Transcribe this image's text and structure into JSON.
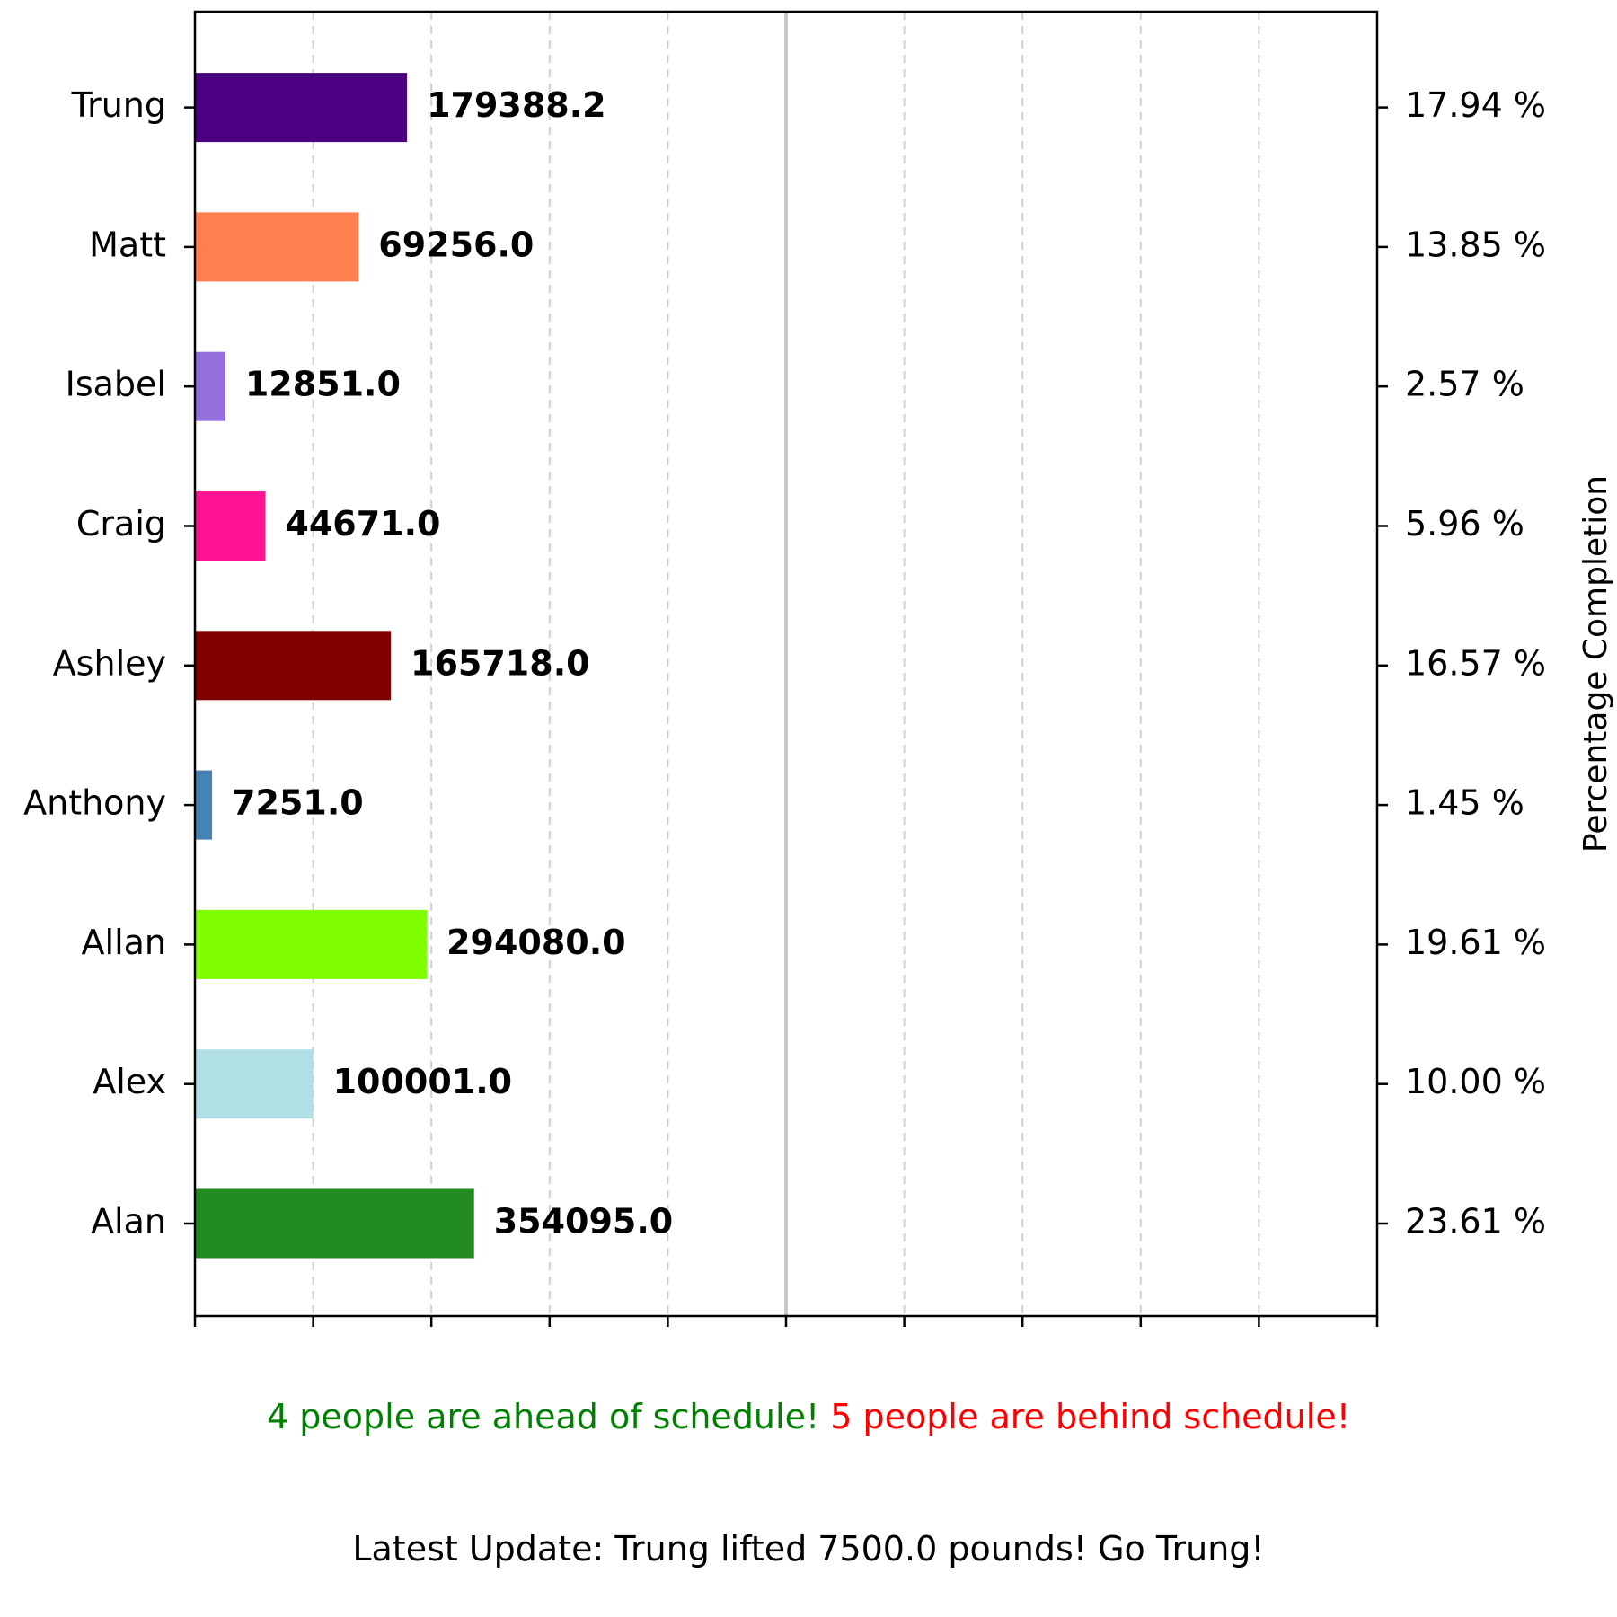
{
  "chart_data": {
    "type": "bar",
    "orientation": "horizontal",
    "categories": [
      "Alan",
      "Alex",
      "Allan",
      "Anthony",
      "Ashley",
      "Craig",
      "Isabel",
      "Matt",
      "Trung"
    ],
    "values": [
      354095.0,
      100001.0,
      294080.0,
      7251.0,
      165718.0,
      44671.0,
      12851.0,
      69256.0,
      179388.2
    ],
    "value_labels": [
      "354095.0",
      "100001.0",
      "294080.0",
      "7251.0",
      "165718.0",
      "44671.0",
      "12851.0",
      "69256.0",
      "179388.2"
    ],
    "percent_completion": [
      23.61,
      10.0,
      19.61,
      1.45,
      16.57,
      5.96,
      2.57,
      13.85,
      17.94
    ],
    "percent_labels": [
      "23.61 %",
      "10.00 %",
      "19.61 %",
      "1.45 %",
      "16.57 %",
      "5.96 %",
      "2.57 %",
      "13.85 %",
      "17.94 %"
    ],
    "colors": [
      "#228b22",
      "#b0dfe5",
      "#7fff00",
      "#4682b4",
      "#800000",
      "#ff1493",
      "#9370db",
      "#ff7f50",
      "#4b0082"
    ],
    "percent_xlim": [
      0,
      100
    ],
    "x_ticks": [
      0,
      10,
      20,
      30,
      40,
      50,
      60,
      70,
      80,
      90,
      100
    ],
    "schedule_reference_percent": 50,
    "right_ylabel": "Percentage Completion",
    "grid": "x-dashed",
    "xlabel": "",
    "title": ""
  },
  "footer": {
    "ahead_text": "4 people are ahead of schedule!",
    "behind_text": "5 people are behind schedule!",
    "update_text": "Latest Update: Trung lifted 7500.0 pounds! Go Trung!"
  }
}
